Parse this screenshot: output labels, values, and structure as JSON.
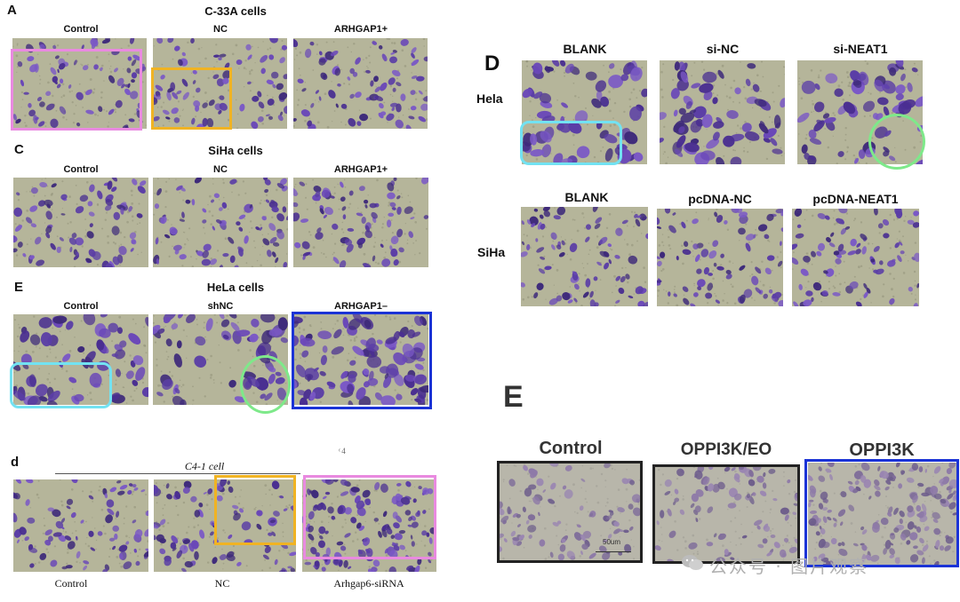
{
  "panel_A": {
    "letter": "A",
    "title": "C-33A cells",
    "columns": [
      "Control",
      "NC",
      "ARHGAP1+"
    ]
  },
  "panel_C": {
    "letter": "C",
    "title": "SiHa cells",
    "columns": [
      "Control",
      "NC",
      "ARHGAP1+"
    ]
  },
  "panel_E_left": {
    "letter": "E",
    "title": "HeLa cells",
    "columns": [
      "Control",
      "shNC",
      "ARHGAP1–"
    ]
  },
  "panel_d": {
    "letter": "d",
    "title": "C4-1   cell",
    "stray_text": "ͨ 4",
    "columns": [
      "Control",
      "NC",
      "Arhgap6-siRNA"
    ]
  },
  "panel_D": {
    "letter": "D",
    "row1_label": "Hela",
    "row1_columns": [
      "BLANK",
      "si-NC",
      "si-NEAT1"
    ],
    "row2_label": "SiHa",
    "row2_columns": [
      "BLANK",
      "pcDNA-NC",
      "pcDNA-NEAT1"
    ]
  },
  "panel_E_right": {
    "letter": "E",
    "columns": [
      "Control",
      "OPPI3K/EO",
      "OPPI3K"
    ],
    "scale_bar_label": "50um"
  },
  "watermark": {
    "text": "公众号 · 图片观察",
    "icon": "wechat-icon"
  },
  "colors": {
    "highlight_pink": "#e98ae0",
    "highlight_orange": "#f0b323",
    "highlight_cyan": "#72e2f2",
    "highlight_green": "#7ee98a",
    "highlight_blue": "#1b33d6",
    "stain_purple": "#5b3ea6",
    "background_tan": "#b5b59a"
  }
}
